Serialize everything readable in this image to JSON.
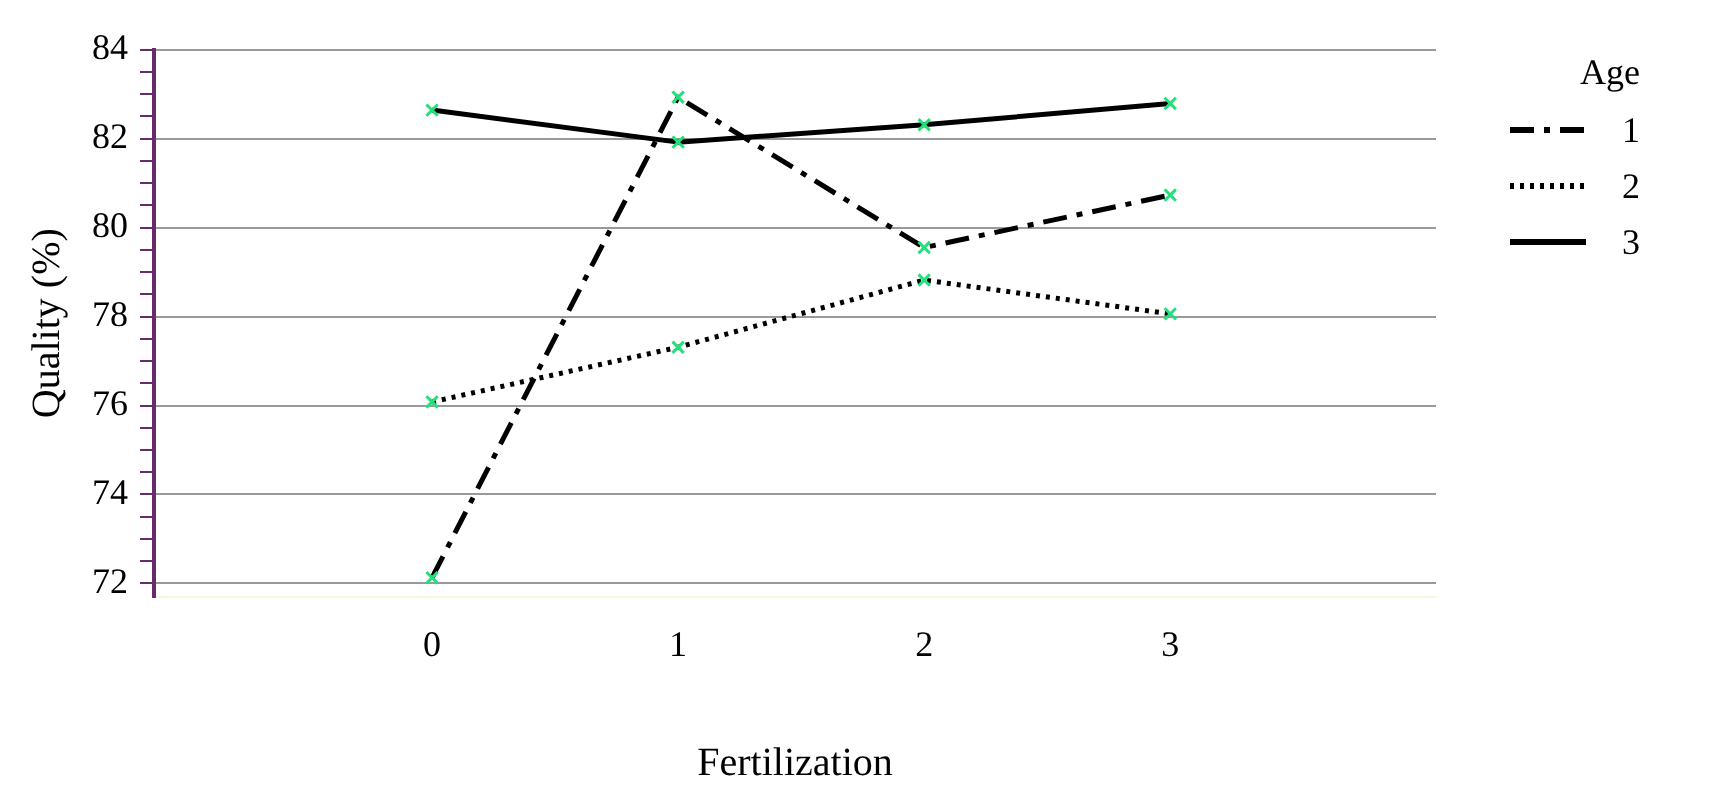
{
  "chart_data": {
    "type": "line",
    "xlabel": "Fertilization",
    "ylabel": "Quality (%)",
    "legend_title": "Age",
    "x": [
      0,
      1,
      2,
      3
    ],
    "series": [
      {
        "name": "1",
        "color": "#000000",
        "line_style": "dashed",
        "values": [
          72.13,
          82.93,
          79.55,
          80.73
        ]
      },
      {
        "name": "2",
        "color": "#000000",
        "line_style": "dotted",
        "values": [
          76.08,
          77.31,
          78.82,
          78.06
        ]
      },
      {
        "name": "3",
        "color": "#000000",
        "line_style": "solid",
        "values": [
          82.64,
          81.92,
          82.31,
          82.79
        ]
      }
    ],
    "xlim": [
      -1.13,
      4.08
    ],
    "xticks": [
      0,
      1,
      2,
      3
    ],
    "ylim": [
      71.7,
      84
    ],
    "yticks": [
      72,
      {
        "value": 72.5,
        "label": null
      },
      {
        "value": 73,
        "label": null
      },
      {
        "value": 73.5,
        "label": null
      },
      74,
      {
        "value": 74.5,
        "label": null
      },
      {
        "value": 75,
        "label": null
      },
      {
        "value": 75.5,
        "label": null
      },
      76,
      {
        "value": 76.5,
        "label": null
      },
      {
        "value": 77,
        "label": null
      },
      {
        "value": 77.5,
        "label": null
      },
      78,
      {
        "value": 78.5,
        "label": null
      },
      {
        "value": 79,
        "label": null
      },
      {
        "value": 79.5,
        "label": null
      },
      80,
      {
        "value": 80.5,
        "label": null
      },
      {
        "value": 81,
        "label": null
      },
      {
        "value": 81.5,
        "label": null
      },
      82,
      {
        "value": 82.5,
        "label": null
      },
      {
        "value": 83,
        "label": null
      },
      {
        "value": 83.5,
        "label": null
      },
      84
    ],
    "grid": "y",
    "legend": "top right",
    "marker": "cross"
  }
}
